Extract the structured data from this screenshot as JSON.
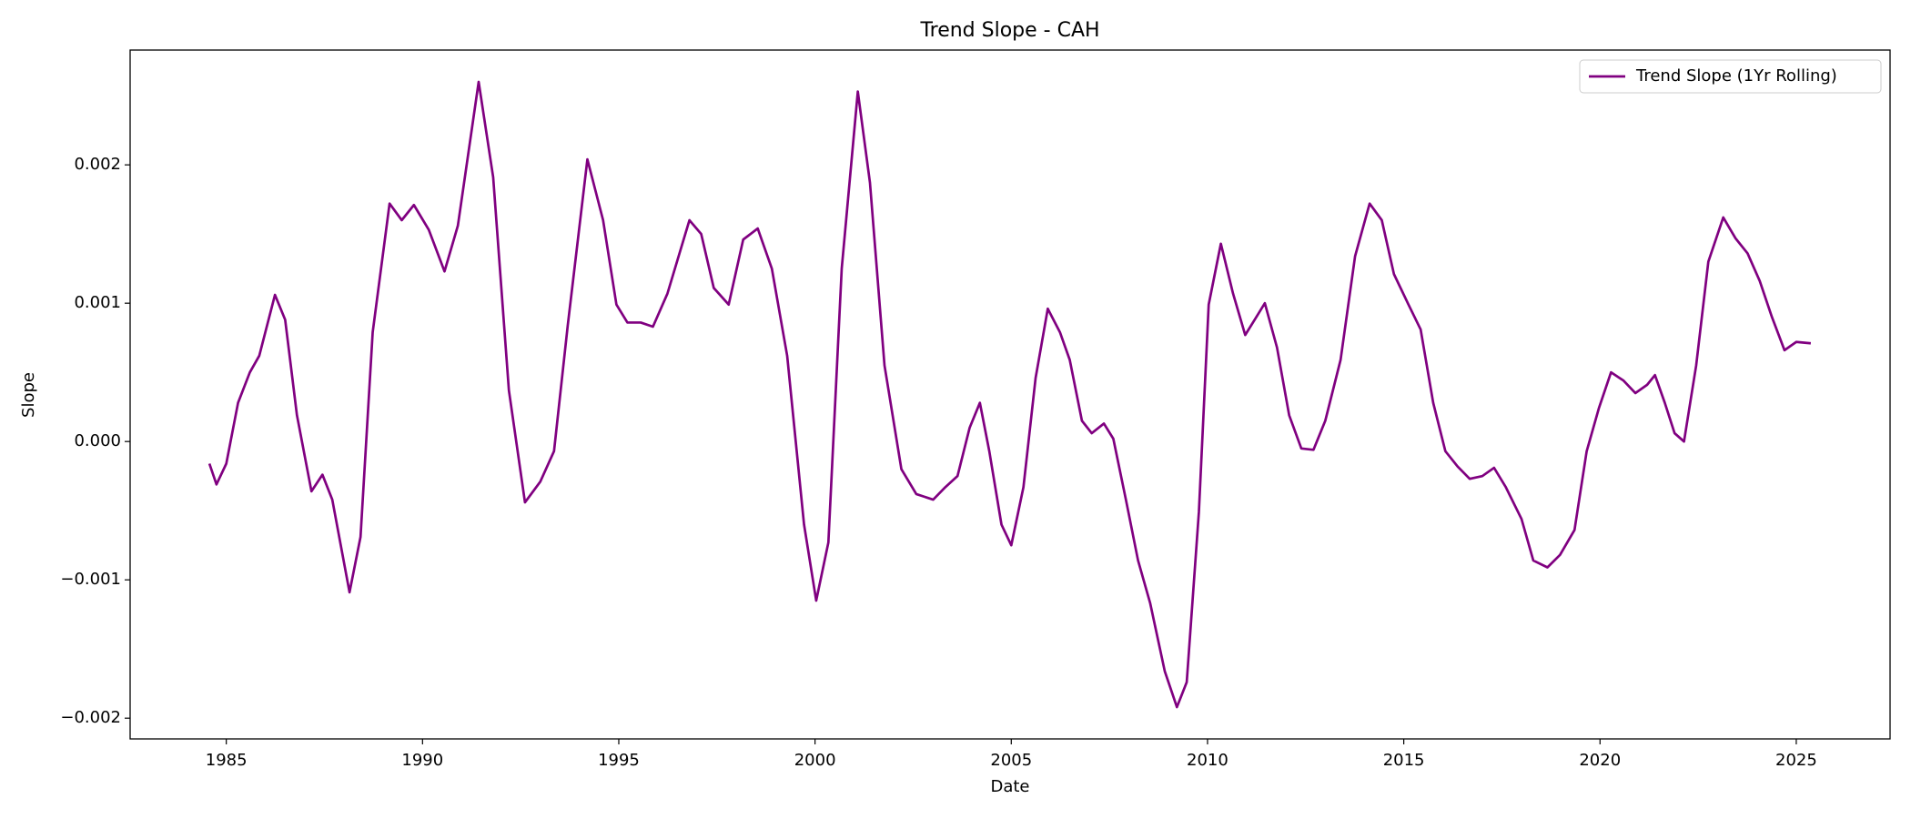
{
  "chart_data": {
    "type": "line",
    "title": "Trend Slope - CAH",
    "xlabel": "Date",
    "ylabel": "Slope",
    "x": [
      1984.57,
      1984.75,
      1985.0,
      1985.3,
      1985.6,
      1985.84,
      1986.24,
      1986.5,
      1986.8,
      1987.17,
      1987.45,
      1987.7,
      1988.14,
      1988.42,
      1988.73,
      1989.16,
      1989.47,
      1989.78,
      1990.16,
      1990.56,
      1990.9,
      1991.43,
      1991.8,
      1992.2,
      1992.61,
      1993.0,
      1993.35,
      1993.7,
      1994.2,
      1994.6,
      1994.94,
      1995.22,
      1995.56,
      1995.87,
      1996.24,
      1996.8,
      1997.1,
      1997.42,
      1997.8,
      1998.17,
      1998.54,
      1998.9,
      1999.29,
      1999.72,
      2000.03,
      2000.34,
      2000.68,
      2001.09,
      2001.4,
      2001.77,
      2002.2,
      2002.58,
      2003.01,
      2003.32,
      2003.63,
      2003.94,
      2004.2,
      2004.44,
      2004.75,
      2005.0,
      2005.31,
      2005.62,
      2005.93,
      2006.24,
      2006.49,
      2006.8,
      2007.05,
      2007.36,
      2007.6,
      2007.92,
      2008.23,
      2008.54,
      2008.91,
      2009.22,
      2009.47,
      2009.78,
      2010.03,
      2010.34,
      2010.65,
      2010.96,
      2011.2,
      2011.46,
      2011.77,
      2012.08,
      2012.39,
      2012.7,
      2013.0,
      2013.39,
      2013.76,
      2014.13,
      2014.44,
      2014.75,
      2015.12,
      2015.43,
      2015.75,
      2016.06,
      2016.37,
      2016.68,
      2017.0,
      2017.3,
      2017.6,
      2018.0,
      2018.3,
      2018.66,
      2018.98,
      2019.35,
      2019.66,
      2019.97,
      2020.28,
      2020.6,
      2020.9,
      2021.2,
      2021.4,
      2021.65,
      2021.9,
      2022.14,
      2022.45,
      2022.76,
      2023.14,
      2023.45,
      2023.76,
      2024.07,
      2024.38,
      2024.7,
      2025.0,
      2025.37
    ],
    "series": [
      {
        "name": "Trend Slope (1Yr Rolling)",
        "color": "#800080",
        "values": [
          -0.00016,
          -0.00031,
          -0.00016,
          0.00028,
          0.0005,
          0.00062,
          0.00106,
          0.00088,
          0.00019,
          -0.00036,
          -0.00024,
          -0.00042,
          -0.00109,
          -0.00069,
          0.00079,
          0.00172,
          0.0016,
          0.00171,
          0.00153,
          0.00123,
          0.00156,
          0.0026,
          0.00191,
          0.00037,
          -0.00044,
          -0.00029,
          -7e-05,
          0.00084,
          0.00204,
          0.0016,
          0.00099,
          0.00086,
          0.00086,
          0.00083,
          0.00107,
          0.0016,
          0.0015,
          0.00111,
          0.00099,
          0.00146,
          0.00154,
          0.00125,
          0.00062,
          -0.0006,
          -0.00115,
          -0.00073,
          0.00125,
          0.00253,
          0.00187,
          0.00055,
          -0.0002,
          -0.00038,
          -0.00042,
          -0.00033,
          -0.00025,
          0.0001,
          0.00028,
          -7e-05,
          -0.0006,
          -0.00075,
          -0.00033,
          0.00046,
          0.00096,
          0.00079,
          0.00059,
          0.00015,
          6e-05,
          0.00013,
          2e-05,
          -0.00042,
          -0.00086,
          -0.00117,
          -0.00166,
          -0.00192,
          -0.00174,
          -0.00051,
          0.00099,
          0.00143,
          0.00107,
          0.00077,
          0.00088,
          0.001,
          0.00068,
          0.00019,
          -5e-05,
          -6e-05,
          0.00015,
          0.00059,
          0.00134,
          0.00172,
          0.0016,
          0.00121,
          0.00099,
          0.00081,
          0.00028,
          -7e-05,
          -0.00018,
          -0.00027,
          -0.00025,
          -0.00019,
          -0.00033,
          -0.00056,
          -0.00086,
          -0.00091,
          -0.00082,
          -0.00064,
          -7e-05,
          0.00024,
          0.0005,
          0.00044,
          0.00035,
          0.00041,
          0.00048,
          0.00028,
          6e-05,
          0,
          0.00055,
          0.0013,
          0.00162,
          0.00147,
          0.00136,
          0.00116,
          0.0009,
          0.00066,
          0.00072,
          0.00071
        ]
      }
    ],
    "xlim": [
      1982.55,
      2027.39
    ],
    "xticks": [
      1985,
      1990,
      1995,
      2000,
      2005,
      2010,
      2015,
      2020,
      2025
    ],
    "ylim": [
      -0.00215,
      0.00283
    ],
    "yticks": [
      {
        "value": -0.002,
        "label": "−0.002"
      },
      {
        "value": -0.001,
        "label": "−0.001"
      },
      {
        "value": 0,
        "label": "0.000"
      },
      {
        "value": 0.001,
        "label": "0.001"
      },
      {
        "value": 0.002,
        "label": "0.002"
      }
    ],
    "legend": "upper right",
    "grid": false
  }
}
